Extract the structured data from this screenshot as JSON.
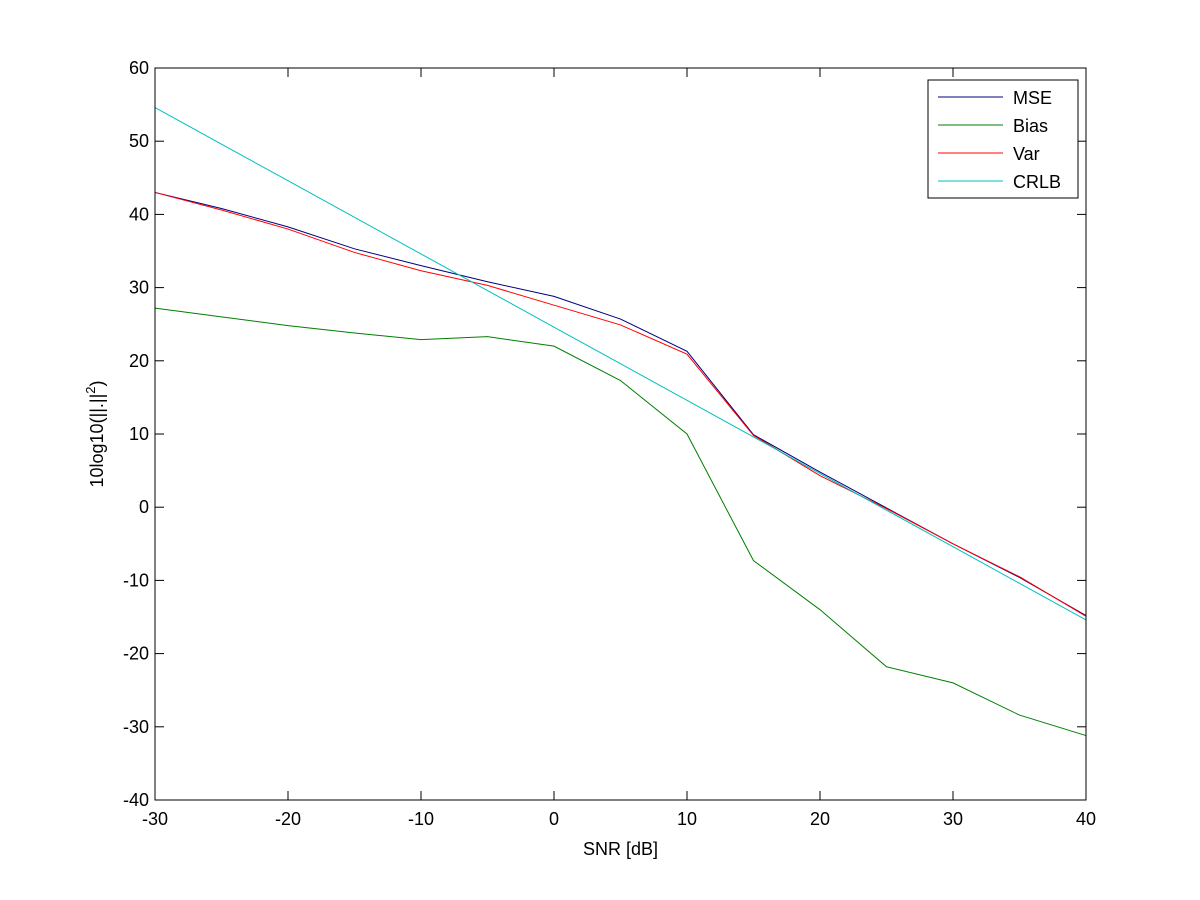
{
  "chart_data": {
    "type": "line",
    "title": "",
    "xlabel": "SNR [dB]",
    "ylabel_base": "10log10(||.||",
    "ylabel_sup": "2",
    "ylabel_tail": ")",
    "xlim": [
      -30,
      40
    ],
    "ylim": [
      -40,
      60
    ],
    "xticks": [
      "-30",
      "-20",
      "-10",
      "0",
      "10",
      "20",
      "30",
      "40"
    ],
    "yticks": [
      "60",
      "50",
      "40",
      "30",
      "20",
      "10",
      "0",
      "-10",
      "-20",
      "-30",
      "-40"
    ],
    "grid": false,
    "legend_position": "top-right",
    "x": [
      -30,
      -25,
      -20,
      -15,
      -10,
      -5,
      0,
      5,
      10,
      15,
      20,
      25,
      30,
      35,
      40
    ],
    "series": [
      {
        "name": "MSE",
        "color": "#00007f",
        "values": [
          43.0,
          40.8,
          38.3,
          35.3,
          33.0,
          30.8,
          28.8,
          25.7,
          21.3,
          9.9,
          4.8,
          -0.1,
          -5.0,
          -9.6,
          -14.8
        ]
      },
      {
        "name": "Bias",
        "color": "#007f00",
        "values": [
          27.2,
          26.0,
          24.8,
          23.8,
          22.9,
          23.3,
          22.0,
          17.3,
          10.0,
          -7.3,
          -14.0,
          -21.8,
          -24.0,
          -28.4,
          -31.2
        ]
      },
      {
        "name": "Var",
        "color": "#ff0000",
        "values": [
          43.0,
          40.6,
          38.0,
          34.8,
          32.3,
          30.3,
          27.6,
          24.9,
          20.9,
          9.8,
          4.3,
          -0.2,
          -5.0,
          -9.5,
          -14.9
        ]
      },
      {
        "name": "CRLB",
        "color": "#00bfbf",
        "values": [
          54.6,
          49.6,
          44.6,
          39.6,
          34.6,
          29.6,
          24.6,
          19.6,
          14.6,
          9.6,
          4.6,
          -0.4,
          -5.4,
          -10.4,
          -15.4
        ]
      }
    ]
  }
}
